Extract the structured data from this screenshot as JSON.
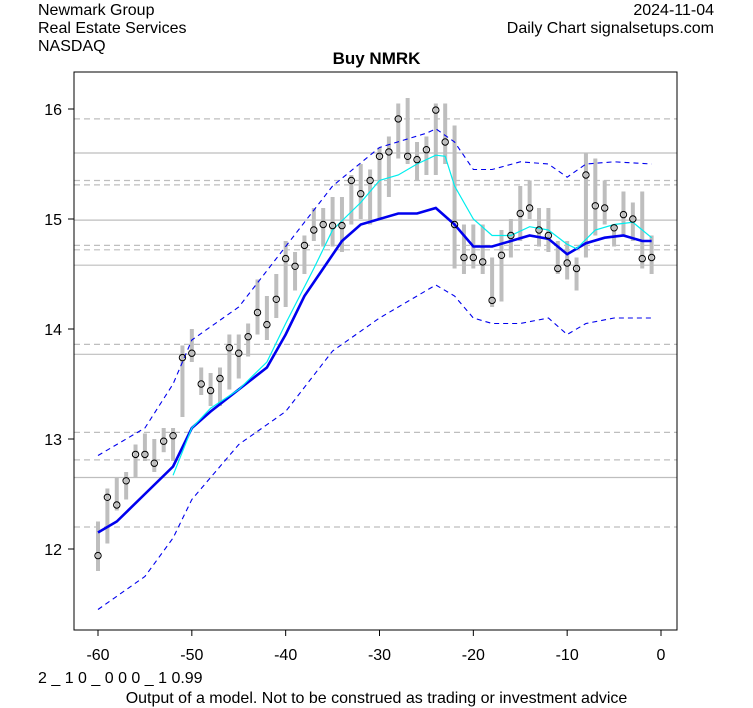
{
  "header": {
    "company": "Newmark Group",
    "sector": "Real Estate Services",
    "exchange": "NASDAQ",
    "date": "2024-11-04",
    "source": "Daily Chart signalsetups.com"
  },
  "footer": {
    "code": "2 _ 1 0 _ 0 0 0 _ 1 0.99",
    "disclaimer": "Output of a model. Not to be construed as trading or investment advice"
  },
  "chart_data": {
    "type": "line",
    "title": "Buy NMRK",
    "xlim": [
      -61.5,
      1.5
    ],
    "ylim": [
      11.3,
      16.4
    ],
    "xticks": [
      -60,
      -50,
      -40,
      -30,
      -20,
      -10,
      0
    ],
    "yticks": [
      12,
      13,
      14,
      15,
      16
    ],
    "colors": {
      "bar": "#bebebe",
      "ma": "#0000ee",
      "fast": "#00eeee",
      "band": "#0000ee",
      "grid": "#bebebe"
    },
    "x": [
      -60,
      -59,
      -58,
      -57,
      -56,
      -55,
      -54,
      -53,
      -52,
      -51,
      -50,
      -49,
      -48,
      -47,
      -46,
      -45,
      -44,
      -43,
      -42,
      -41,
      -40,
      -39,
      -38,
      -37,
      -36,
      -35,
      -34,
      -33,
      -32,
      -31,
      -30,
      -29,
      -28,
      -27,
      -26,
      -25,
      -24,
      -23,
      -22,
      -21,
      -20,
      -19,
      -18,
      -17,
      -16,
      -15,
      -14,
      -13,
      -12,
      -11,
      -10,
      -9,
      -8,
      -7,
      -6,
      -5,
      -4,
      -3,
      -2,
      -1
    ],
    "close": [
      11.94,
      12.47,
      12.4,
      12.62,
      12.86,
      12.86,
      12.78,
      12.98,
      13.03,
      13.74,
      13.78,
      13.5,
      13.44,
      13.55,
      13.83,
      13.78,
      13.93,
      14.15,
      14.04,
      14.27,
      14.64,
      14.57,
      14.76,
      14.9,
      14.95,
      14.94,
      14.94,
      15.35,
      15.23,
      15.35,
      15.57,
      15.61,
      15.91,
      15.57,
      15.54,
      15.63,
      15.99,
      15.7,
      14.95,
      14.65,
      14.65,
      14.61,
      14.26,
      14.67,
      14.85,
      15.05,
      15.1,
      14.9,
      14.85,
      14.55,
      14.6,
      14.55,
      15.4,
      15.12,
      15.1,
      14.92,
      15.04,
      15.0,
      14.64,
      14.65
    ],
    "high": [
      12.25,
      12.55,
      12.65,
      12.7,
      12.95,
      13.05,
      13.0,
      13.1,
      13.1,
      13.85,
      14.0,
      13.65,
      13.6,
      13.65,
      13.95,
      13.95,
      14.05,
      14.45,
      14.3,
      14.5,
      14.8,
      14.7,
      14.85,
      15.1,
      15.1,
      15.2,
      15.2,
      15.4,
      15.5,
      15.45,
      15.65,
      15.75,
      16.05,
      16.1,
      15.7,
      15.75,
      16.05,
      16.05,
      15.85,
      14.95,
      14.95,
      14.95,
      14.65,
      14.9,
      15.0,
      15.3,
      15.35,
      15.1,
      15.1,
      14.8,
      14.8,
      14.65,
      15.6,
      15.55,
      15.35,
      14.95,
      15.25,
      15.15,
      15.25,
      14.85
    ],
    "low": [
      11.8,
      12.05,
      12.35,
      12.45,
      12.65,
      12.8,
      12.7,
      12.88,
      12.8,
      13.2,
      13.7,
      13.4,
      13.3,
      13.3,
      13.45,
      13.55,
      13.75,
      13.95,
      13.9,
      14.1,
      14.2,
      14.35,
      14.5,
      14.8,
      14.75,
      14.75,
      14.7,
      14.95,
      15.0,
      14.95,
      15.0,
      15.2,
      15.55,
      15.5,
      15.35,
      15.4,
      15.4,
      15.5,
      14.55,
      14.5,
      14.55,
      14.5,
      14.2,
      14.25,
      14.65,
      14.8,
      15.0,
      14.75,
      14.7,
      14.5,
      14.45,
      14.35,
      14.65,
      14.85,
      14.95,
      14.75,
      14.85,
      14.8,
      14.55,
      14.5
    ],
    "series": [
      {
        "name": "moving-average",
        "points": [
          [
            -60,
            12.15
          ],
          [
            -58,
            12.25
          ],
          [
            -55,
            12.5
          ],
          [
            -52,
            12.75
          ],
          [
            -50,
            13.1
          ],
          [
            -48,
            13.25
          ],
          [
            -45,
            13.45
          ],
          [
            -42,
            13.65
          ],
          [
            -40,
            13.95
          ],
          [
            -38,
            14.3
          ],
          [
            -36,
            14.55
          ],
          [
            -34,
            14.8
          ],
          [
            -32,
            14.95
          ],
          [
            -30,
            15.0
          ],
          [
            -28,
            15.05
          ],
          [
            -26,
            15.05
          ],
          [
            -24,
            15.1
          ],
          [
            -22,
            14.95
          ],
          [
            -20,
            14.75
          ],
          [
            -18,
            14.75
          ],
          [
            -16,
            14.8
          ],
          [
            -14,
            14.85
          ],
          [
            -12,
            14.82
          ],
          [
            -10,
            14.68
          ],
          [
            -8,
            14.78
          ],
          [
            -6,
            14.83
          ],
          [
            -4,
            14.85
          ],
          [
            -2,
            14.8
          ],
          [
            -1,
            14.8
          ]
        ]
      },
      {
        "name": "fast-average",
        "points": [
          [
            -52,
            12.67
          ],
          [
            -50,
            13.1
          ],
          [
            -48,
            13.28
          ],
          [
            -45,
            13.45
          ],
          [
            -42,
            13.7
          ],
          [
            -40,
            14.05
          ],
          [
            -37,
            14.55
          ],
          [
            -35,
            14.9
          ],
          [
            -32,
            15.15
          ],
          [
            -30,
            15.35
          ],
          [
            -28,
            15.4
          ],
          [
            -26,
            15.5
          ],
          [
            -24,
            15.58
          ],
          [
            -23,
            15.57
          ],
          [
            -22,
            15.3
          ],
          [
            -20,
            15.0
          ],
          [
            -18,
            14.85
          ],
          [
            -16,
            14.85
          ],
          [
            -14,
            14.93
          ],
          [
            -12,
            14.9
          ],
          [
            -10,
            14.77
          ],
          [
            -9,
            14.73
          ],
          [
            -7,
            14.9
          ],
          [
            -5,
            14.95
          ],
          [
            -3,
            14.97
          ],
          [
            -1,
            14.83
          ]
        ]
      },
      {
        "name": "upper-band",
        "points": [
          [
            -60,
            12.85
          ],
          [
            -57,
            13.0
          ],
          [
            -55,
            13.1
          ],
          [
            -52,
            13.5
          ],
          [
            -50,
            13.9
          ],
          [
            -45,
            14.2
          ],
          [
            -40,
            14.75
          ],
          [
            -35,
            15.3
          ],
          [
            -30,
            15.65
          ],
          [
            -25,
            15.78
          ],
          [
            -24,
            15.82
          ],
          [
            -22,
            15.7
          ],
          [
            -20,
            15.45
          ],
          [
            -18,
            15.45
          ],
          [
            -15,
            15.52
          ],
          [
            -12,
            15.5
          ],
          [
            -10,
            15.38
          ],
          [
            -8,
            15.5
          ],
          [
            -5,
            15.52
          ],
          [
            -1,
            15.5
          ]
        ]
      },
      {
        "name": "lower-band",
        "points": [
          [
            -60,
            11.45
          ],
          [
            -55,
            11.75
          ],
          [
            -52,
            12.1
          ],
          [
            -50,
            12.45
          ],
          [
            -45,
            12.95
          ],
          [
            -40,
            13.25
          ],
          [
            -35,
            13.8
          ],
          [
            -30,
            14.1
          ],
          [
            -25,
            14.35
          ],
          [
            -24,
            14.4
          ],
          [
            -22,
            14.3
          ],
          [
            -20,
            14.1
          ],
          [
            -18,
            14.05
          ],
          [
            -15,
            14.05
          ],
          [
            -12,
            14.1
          ],
          [
            -10,
            13.95
          ],
          [
            -8,
            14.05
          ],
          [
            -5,
            14.1
          ],
          [
            -1,
            14.1
          ]
        ]
      }
    ],
    "hlines_solid": [
      15.6,
      14.99,
      14.58,
      13.77,
      12.65
    ],
    "hlines_dashed": [
      15.91,
      15.35,
      15.31,
      14.76,
      14.72,
      13.86,
      13.06,
      12.81,
      12.2
    ]
  }
}
